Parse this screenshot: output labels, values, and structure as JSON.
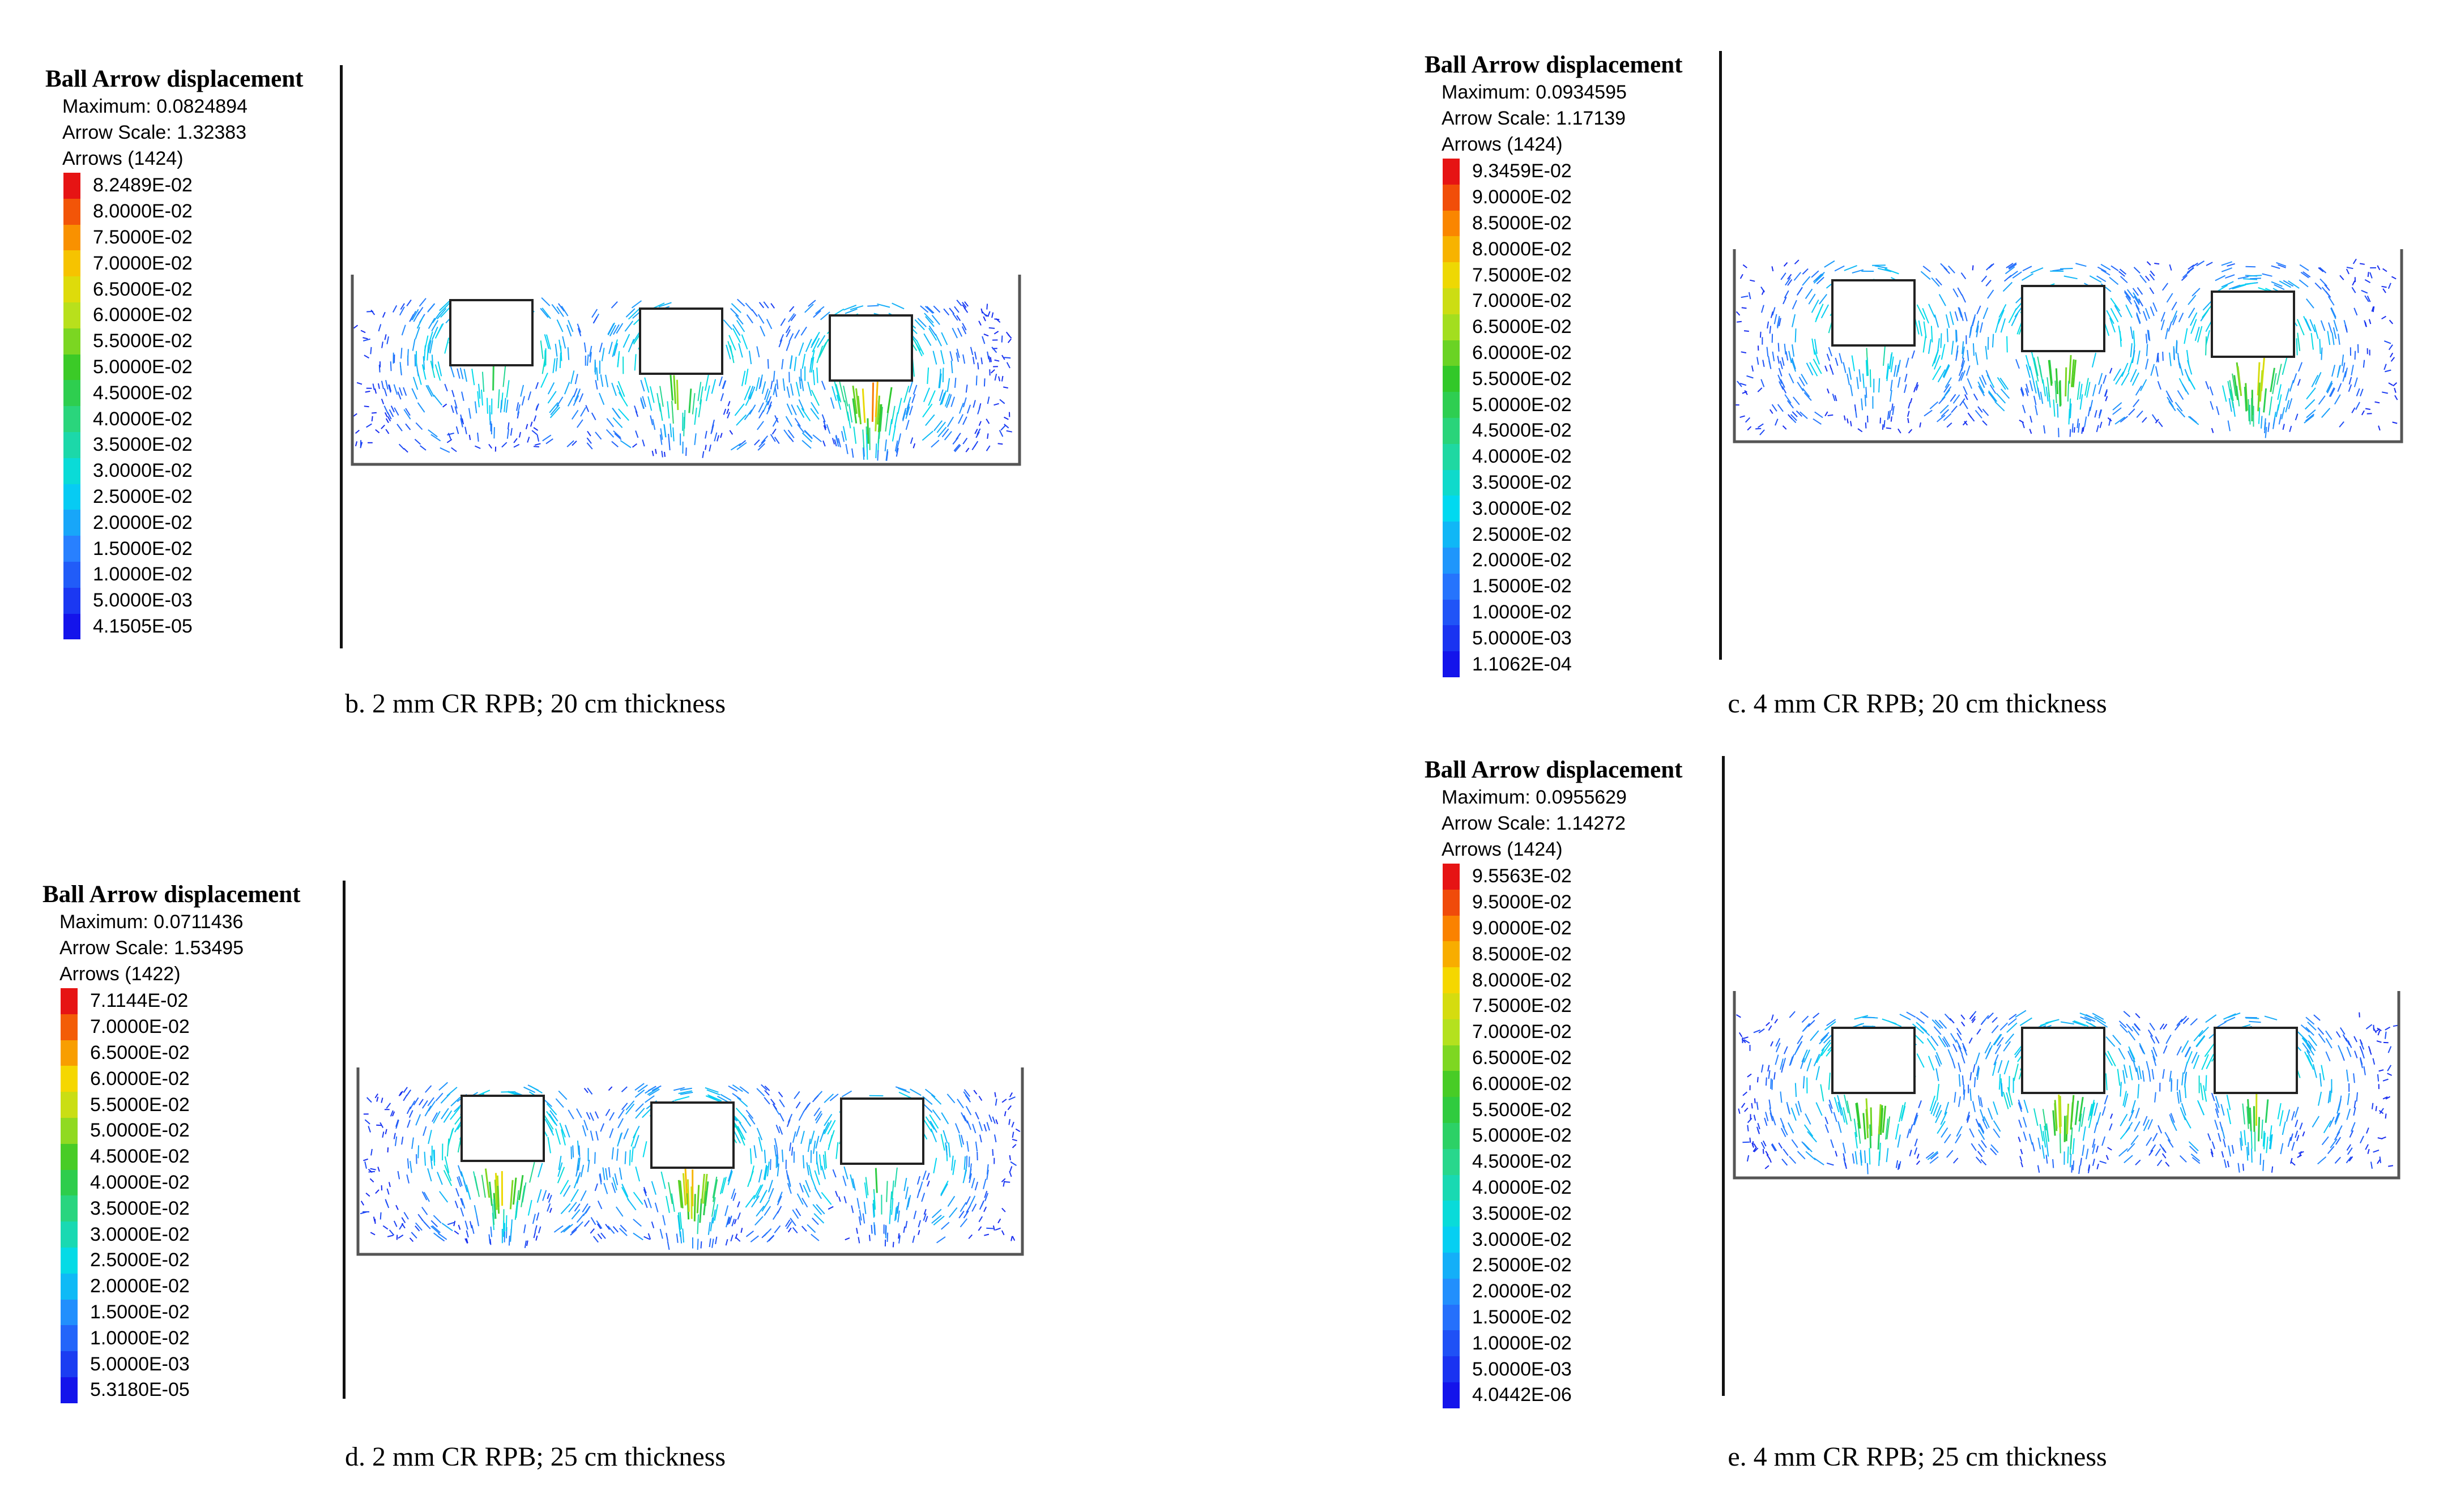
{
  "panels": [
    {
      "id": "b",
      "legend_title": "Ball Arrow displacement",
      "maximum": "Maximum: 0.0824894",
      "arrow_scale": "Arrow Scale: 1.32383",
      "arrows": "Arrows (1424)",
      "scale": [
        "8.2489E-02",
        "8.0000E-02",
        "7.5000E-02",
        "7.0000E-02",
        "6.5000E-02",
        "6.0000E-02",
        "5.5000E-02",
        "5.0000E-02",
        "4.5000E-02",
        "4.0000E-02",
        "3.5000E-02",
        "3.0000E-02",
        "2.5000E-02",
        "2.0000E-02",
        "1.5000E-02",
        "1.0000E-02",
        "5.0000E-03",
        "4.1505E-05"
      ],
      "caption": "b. 2 mm CR RPB; 20 cm thickness"
    },
    {
      "id": "c",
      "legend_title": "Ball Arrow displacement",
      "maximum": "Maximum: 0.0934595",
      "arrow_scale": "Arrow Scale: 1.17139",
      "arrows": "Arrows (1424)",
      "scale": [
        "9.3459E-02",
        "9.0000E-02",
        "8.5000E-02",
        "8.0000E-02",
        "7.5000E-02",
        "7.0000E-02",
        "6.5000E-02",
        "6.0000E-02",
        "5.5000E-02",
        "5.0000E-02",
        "4.5000E-02",
        "4.0000E-02",
        "3.5000E-02",
        "3.0000E-02",
        "2.5000E-02",
        "2.0000E-02",
        "1.5000E-02",
        "1.0000E-02",
        "5.0000E-03",
        "1.1062E-04"
      ],
      "caption": "c. 4 mm CR RPB; 20 cm thickness"
    },
    {
      "id": "d",
      "legend_title": "Ball Arrow displacement",
      "maximum": "Maximum: 0.0711436",
      "arrow_scale": "Arrow Scale: 1.53495",
      "arrows": "Arrows (1422)",
      "scale": [
        "7.1144E-02",
        "7.0000E-02",
        "6.5000E-02",
        "6.0000E-02",
        "5.5000E-02",
        "5.0000E-02",
        "4.5000E-02",
        "4.0000E-02",
        "3.5000E-02",
        "3.0000E-02",
        "2.5000E-02",
        "2.0000E-02",
        "1.5000E-02",
        "1.0000E-02",
        "5.0000E-03",
        "5.3180E-05"
      ],
      "caption": "d. 2 mm CR RPB; 25 cm thickness"
    },
    {
      "id": "e",
      "legend_title": "Ball Arrow displacement",
      "maximum": "Maximum: 0.0955629",
      "arrow_scale": "Arrow Scale: 1.14272",
      "arrows": "Arrows (1424)",
      "scale": [
        "9.5563E-02",
        "9.5000E-02",
        "9.0000E-02",
        "8.5000E-02",
        "8.0000E-02",
        "7.5000E-02",
        "7.0000E-02",
        "6.5000E-02",
        "6.0000E-02",
        "5.5000E-02",
        "5.0000E-02",
        "4.5000E-02",
        "4.0000E-02",
        "3.5000E-02",
        "3.0000E-02",
        "2.5000E-02",
        "2.0000E-02",
        "1.5000E-02",
        "1.0000E-02",
        "5.0000E-03",
        "4.0442E-06"
      ],
      "caption": "e. 4 mm CR RPB; 25 cm thickness"
    }
  ]
}
